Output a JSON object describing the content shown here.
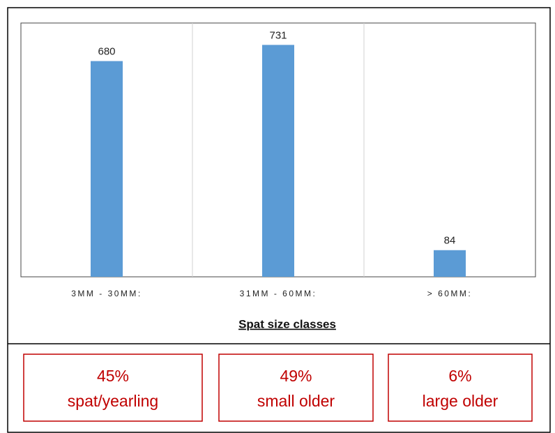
{
  "chart_data": {
    "type": "bar",
    "categories": [
      "3MM - 30MM:",
      "31MM - 60MM:",
      "> 60MM:"
    ],
    "values": [
      680,
      731,
      84
    ],
    "color": "#5b9bd5",
    "ylim": [
      0,
      800
    ],
    "x_label": "Spat size classes",
    "boxes": [
      {
        "percent": "45%",
        "label": "spat/yearling"
      },
      {
        "percent": "49%",
        "label": "small older"
      },
      {
        "percent": "6%",
        "label": "large older"
      }
    ]
  }
}
